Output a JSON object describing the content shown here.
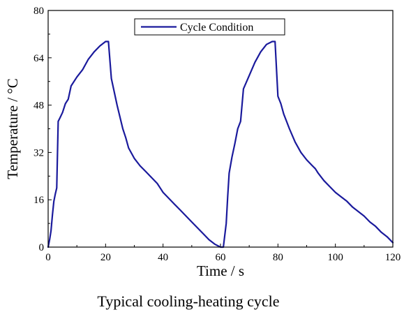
{
  "chart_data": {
    "type": "line",
    "title": "",
    "caption": "Typical cooling-heating cycle",
    "xlabel": "Time / s",
    "ylabel": "Temperature / °C",
    "xlim": [
      0,
      120
    ],
    "ylim": [
      0,
      80
    ],
    "xticks": [
      0,
      20,
      40,
      60,
      80,
      100,
      120
    ],
    "yticks": [
      0,
      16,
      32,
      48,
      64,
      80
    ],
    "grid": false,
    "legend_position": "top-center",
    "series": [
      {
        "name": "Cycle Condition",
        "color": "#1a1a9c",
        "x": [
          0,
          0.5,
          1,
          1.5,
          2,
          2.5,
          3,
          3.5,
          4,
          5,
          6,
          7,
          8,
          10,
          12,
          14,
          16,
          18,
          20,
          21,
          22,
          24,
          26,
          27,
          28,
          30,
          32,
          34,
          36,
          38,
          39,
          40,
          42,
          44,
          46,
          48,
          50,
          52,
          54,
          56,
          58,
          60,
          61,
          62,
          62.5,
          63,
          64,
          65,
          66,
          67,
          68,
          70,
          72,
          74,
          76,
          78,
          79,
          80,
          81,
          82,
          83,
          84,
          86,
          88,
          90,
          92,
          93,
          94,
          96,
          98,
          100,
          102,
          104,
          106,
          108,
          110,
          112,
          114,
          116,
          118,
          120
        ],
        "y": [
          0,
          2.5,
          5.5,
          11,
          15.5,
          18,
          20,
          42.5,
          43.5,
          45.5,
          48.5,
          50,
          54.5,
          57.5,
          60,
          63.5,
          66,
          68,
          69.5,
          69.5,
          57,
          48,
          40,
          37,
          33.5,
          30,
          27.5,
          25.5,
          23.5,
          21.5,
          20,
          18.5,
          16.5,
          14.5,
          12.5,
          10.5,
          8.5,
          6.5,
          4.5,
          2.5,
          1,
          0,
          0,
          8,
          17,
          25,
          30.5,
          35,
          40,
          42.5,
          53.5,
          58,
          62.5,
          66,
          68.5,
          69.5,
          69.5,
          51,
          48.5,
          45,
          42.5,
          40,
          35.5,
          32,
          29.5,
          27.5,
          26.5,
          25,
          22.5,
          20.5,
          18.5,
          17,
          15.5,
          13.5,
          12,
          10.5,
          8.5,
          7,
          5,
          3.5,
          1.5
        ]
      }
    ]
  }
}
